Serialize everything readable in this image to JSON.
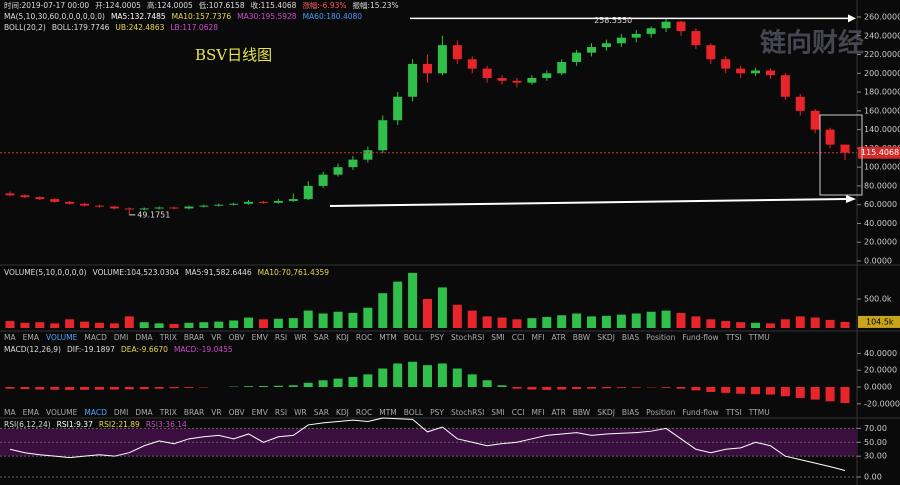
{
  "header": {
    "time": "时间:2019-07-17 00:00",
    "open": "开:124.0005",
    "high": "高:124.0005",
    "low": "低:107.6158",
    "close": "收:115.4068",
    "change": "涨幅:-6.93%",
    "amplitude": "振幅:15.23%",
    "ma_params": "MA(5,10,30,60,0,0,0,0,0,0)",
    "ma5": "MA5:132.7485",
    "ma10": "MA10:157.7376",
    "ma30": "MA30:195.5928",
    "ma60": "MA60:180.4080",
    "boll_params": "BOLL(20,2)",
    "boll": "BOLL:179.7746",
    "ub": "UB:242.4863",
    "lb": "LB:117.0628"
  },
  "tabs": [
    "MA",
    "EMA",
    "VOLUME",
    "MACD",
    "DMI",
    "DMA",
    "TRIX",
    "BRAR",
    "VR",
    "OBV",
    "EMV",
    "RSI",
    "WR",
    "SAR",
    "KDJ",
    "ROC",
    "MTM",
    "BOLL",
    "PSY",
    "StochRSI",
    "SMI",
    "CCI",
    "MFI",
    "ATR",
    "BBW",
    "SKDJ",
    "BIAS",
    "Position",
    "Fund-flow",
    "TTSI",
    "TTMU"
  ],
  "chart_data": [
    {
      "type": "candlestick",
      "title": "BSV日线图",
      "watermark": "链向财经",
      "up_color": "#2fbf4a",
      "down_color": "#e8252b",
      "ylim": [
        0,
        260
      ],
      "yticks": [
        {
          "value": 260,
          "label": "260.0000"
        },
        {
          "value": 240,
          "label": "240.0000"
        },
        {
          "value": 220,
          "label": "220.0000"
        },
        {
          "value": 200,
          "label": "200.0000"
        },
        {
          "value": 180,
          "label": "180.0000"
        },
        {
          "value": 160,
          "label": "160.0000"
        },
        {
          "value": 140,
          "label": "140.0000"
        },
        {
          "value": 120,
          "label": "120.0000"
        },
        {
          "value": 100,
          "label": "100.0000"
        },
        {
          "value": 80,
          "label": "80.0000"
        },
        {
          "value": 60,
          "label": "60.0000"
        },
        {
          "value": 40,
          "label": "40.0000"
        },
        {
          "value": 20,
          "label": "20.0000"
        },
        {
          "value": 0,
          "label": "0.0000"
        }
      ],
      "last_price": 115.4068,
      "high_annotation": {
        "value": 258.555,
        "label": "258.5550"
      },
      "low_annotation": 49.1751,
      "ohlc": [
        [
          72,
          74,
          69,
          70
        ],
        [
          70,
          71,
          67,
          68
        ],
        [
          68,
          69,
          65,
          66
        ],
        [
          66,
          67,
          62,
          63
        ],
        [
          63,
          64,
          60,
          61
        ],
        [
          61,
          62,
          58,
          59
        ],
        [
          59,
          60,
          57,
          58
        ],
        [
          58,
          59,
          55,
          56
        ],
        [
          56,
          57,
          49.1751,
          55
        ],
        [
          55,
          57,
          54,
          56
        ],
        [
          56,
          58,
          55,
          57
        ],
        [
          57,
          58,
          55,
          56
        ],
        [
          56,
          59,
          55,
          58
        ],
        [
          58,
          60,
          57,
          59
        ],
        [
          59,
          61,
          58,
          60
        ],
        [
          60,
          62,
          59,
          61
        ],
        [
          61,
          65,
          60,
          63
        ],
        [
          63,
          64,
          61,
          62
        ],
        [
          62,
          66,
          61,
          64
        ],
        [
          64,
          72,
          63,
          66
        ],
        [
          66,
          85,
          65,
          80
        ],
        [
          80,
          95,
          78,
          92
        ],
        [
          92,
          104,
          90,
          100
        ],
        [
          100,
          112,
          97,
          108
        ],
        [
          108,
          122,
          105,
          118
        ],
        [
          118,
          155,
          115,
          150
        ],
        [
          150,
          180,
          145,
          175
        ],
        [
          175,
          215,
          170,
          210
        ],
        [
          210,
          220,
          190,
          200
        ],
        [
          200,
          240,
          198,
          230
        ],
        [
          230,
          235,
          210,
          215
        ],
        [
          215,
          218,
          200,
          205
        ],
        [
          205,
          208,
          190,
          195
        ],
        [
          195,
          198,
          188,
          192
        ],
        [
          192,
          195,
          185,
          190
        ],
        [
          190,
          198,
          188,
          195
        ],
        [
          195,
          203,
          192,
          200
        ],
        [
          200,
          215,
          198,
          212
        ],
        [
          212,
          225,
          208,
          222
        ],
        [
          222,
          232,
          218,
          228
        ],
        [
          228,
          236,
          224,
          232
        ],
        [
          232,
          242,
          228,
          238
        ],
        [
          238,
          246,
          233,
          242
        ],
        [
          242,
          250,
          238,
          248
        ],
        [
          248,
          258.555,
          244,
          255
        ],
        [
          255,
          256,
          240,
          245
        ],
        [
          245,
          248,
          226,
          230
        ],
        [
          230,
          232,
          210,
          215
        ],
        [
          215,
          218,
          200,
          205
        ],
        [
          205,
          208,
          195,
          200
        ],
        [
          200,
          206,
          197,
          203
        ],
        [
          203,
          205,
          194,
          198
        ],
        [
          198,
          200,
          172,
          175
        ],
        [
          175,
          178,
          155,
          160
        ],
        [
          160,
          162,
          136,
          140
        ],
        [
          140,
          142,
          120,
          124.0005
        ],
        [
          124.0005,
          124.0005,
          107.6158,
          115.4068
        ]
      ]
    },
    {
      "type": "volume",
      "params": "VOLUME(5,10,0,0,0,0)",
      "volume": "VOLUME:104,523.0304",
      "ma5": "MA5:91,582.6446",
      "ma10": "MA10:70,761.4359",
      "active_tab": "VOLUME",
      "ylim": [
        0,
        1000000
      ],
      "yticks": [
        {
          "value": 500000,
          "label": "500.0k"
        }
      ],
      "current_tag": {
        "value": 104523.0304,
        "label": "104.5k"
      },
      "values": [
        120000,
        90000,
        100000,
        80000,
        150000,
        110000,
        90000,
        80000,
        200000,
        100000,
        80000,
        70000,
        90000,
        100000,
        110000,
        130000,
        180000,
        150000,
        160000,
        170000,
        300000,
        250000,
        280000,
        260000,
        350000,
        600000,
        800000,
        950000,
        500000,
        700000,
        400000,
        300000,
        200000,
        180000,
        150000,
        170000,
        190000,
        220000,
        250000,
        200000,
        210000,
        230000,
        250000,
        280000,
        300000,
        260000,
        200000,
        150000,
        120000,
        100000,
        90000,
        80000,
        150000,
        200000,
        180000,
        140000,
        104523.0304
      ]
    },
    {
      "type": "macd",
      "params": "MACD(12,26,9)",
      "dif": "DIF:-19.1897",
      "dea": "DEA:-9.6670",
      "macd": "MACD:-19.0455",
      "active_tab": "MACD",
      "ylim": [
        -25,
        50
      ],
      "yticks": [
        {
          "value": 40,
          "label": "40.0000"
        },
        {
          "value": 20,
          "label": "20.0000"
        },
        {
          "value": 0,
          "label": "0.0000"
        },
        {
          "value": -20,
          "label": "-20.0000"
        }
      ],
      "values": [
        -2,
        -2.5,
        -3,
        -3.2,
        -3.5,
        -3.4,
        -3.2,
        -3,
        -2.8,
        -2.5,
        -2,
        -1.5,
        -1,
        -0.5,
        0,
        0.5,
        1,
        1.2,
        1.5,
        2,
        5,
        8,
        10,
        12,
        15,
        22,
        28,
        30,
        26,
        28,
        22,
        15,
        8,
        2,
        -2,
        -3,
        -3.5,
        -3,
        -2.5,
        -2,
        -1.5,
        -1,
        -0.8,
        -0.5,
        -1,
        -2,
        -4,
        -6,
        -7,
        -8,
        -8.5,
        -9,
        -11,
        -13,
        -15,
        -17,
        -19.0455
      ]
    },
    {
      "type": "rsi",
      "params": "RSI(6,12,24)",
      "rsi1": "RSI1:9.37",
      "rsi2": "RSI2:21.89",
      "rsi3": "RSI3:36.14",
      "ylim": [
        0,
        85
      ],
      "yticks": [
        {
          "value": 70,
          "label": "70.00"
        },
        {
          "value": 50,
          "label": "50.00"
        },
        {
          "value": 30,
          "label": "30.00"
        },
        {
          "value": 0,
          "label": "0.00"
        }
      ],
      "values": [
        40,
        35,
        32,
        30,
        28,
        30,
        32,
        30,
        35,
        45,
        52,
        48,
        55,
        58,
        60,
        55,
        62,
        50,
        58,
        60,
        75,
        78,
        80,
        82,
        80,
        85,
        84,
        83,
        65,
        72,
        55,
        50,
        45,
        48,
        50,
        55,
        60,
        62,
        64,
        60,
        62,
        63,
        64,
        66,
        70,
        55,
        40,
        35,
        40,
        42,
        50,
        45,
        30,
        25,
        20,
        15,
        9.37
      ]
    }
  ]
}
